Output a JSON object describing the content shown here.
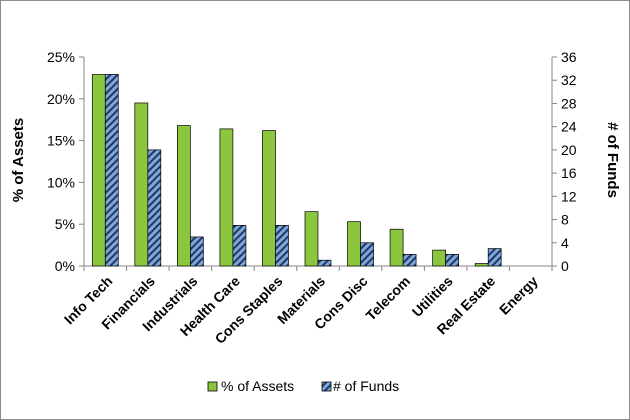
{
  "chart_data": {
    "type": "bar",
    "categories": [
      "Info Tech",
      "Financials",
      "Industrials",
      "Health Care",
      "Cons Staples",
      "Materials",
      "Cons Disc",
      "Telecom",
      "Utilities",
      "Real Estate",
      "Energy"
    ],
    "series": [
      {
        "name": "% of Assets",
        "axis": "left",
        "values": [
          22.9,
          19.5,
          16.8,
          16.4,
          16.2,
          6.5,
          5.3,
          4.4,
          1.9,
          0.3,
          0.0
        ]
      },
      {
        "name": "# of Funds",
        "axis": "right",
        "values": [
          33,
          20,
          5,
          7,
          7,
          1,
          4,
          2,
          2,
          3,
          0
        ]
      }
    ],
    "ylabel": "% of Assets",
    "y2label": "# of Funds",
    "ylim": [
      0,
      25
    ],
    "y2lim": [
      0,
      36
    ],
    "yticks": [
      "0%",
      "5%",
      "10%",
      "15%",
      "20%",
      "25%"
    ],
    "y2ticks": [
      "0",
      "4",
      "8",
      "12",
      "16",
      "20",
      "24",
      "28",
      "32",
      "36"
    ],
    "legend_position": "bottom",
    "colors": {
      "assets": "#8cc63f",
      "funds": "#7ea6d8",
      "funds_stripe": "#1f3864",
      "outline": "#000000"
    }
  }
}
